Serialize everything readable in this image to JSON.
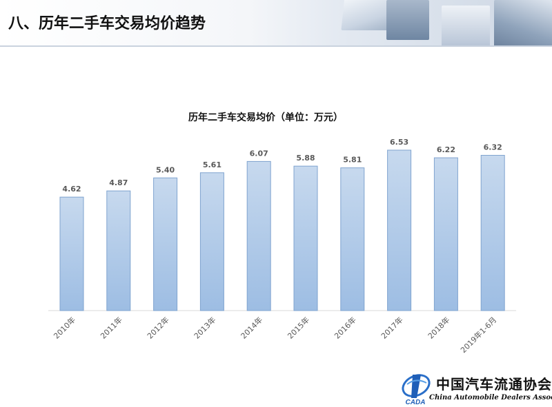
{
  "header": {
    "title": "八、历年二手车交易均价趋势"
  },
  "colors": {
    "bar_top": "#c7d9ee",
    "bar_bottom": "#9dbde3",
    "bar_stroke": "#7fa3cf",
    "label_text": "#595959"
  },
  "chart_data": {
    "type": "bar",
    "title": "历年二手车交易均价（单位：万元）",
    "categories": [
      "2010年",
      "2011年",
      "2012年",
      "2013年",
      "2014年",
      "2015年",
      "2016年",
      "2017年",
      "2018年",
      "2019年1-6月"
    ],
    "values": [
      4.62,
      4.87,
      5.4,
      5.61,
      6.07,
      5.88,
      5.81,
      6.53,
      6.22,
      6.32
    ],
    "value_labels": [
      "4.62",
      "4.87",
      "5.40",
      "5.61",
      "6.07",
      "5.88",
      "5.81",
      "6.53",
      "6.22",
      "6.32"
    ],
    "xlabel": "",
    "ylabel": "",
    "ylim": [
      0,
      6.53
    ],
    "grid": false,
    "legend": "none",
    "tick_label_rotation_deg": -45
  },
  "logo": {
    "name_cn": "中国汽车流通协会",
    "name_en": "China Automobile Dealers Association",
    "mark_text": "CADA",
    "mark_icon": "cada-logo-icon"
  }
}
